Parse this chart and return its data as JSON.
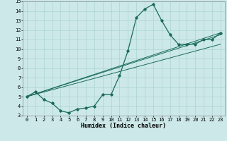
{
  "xlabel": "Humidex (Indice chaleur)",
  "bg_color": "#cce8e8",
  "grid_color": "#aad4d0",
  "line_color": "#1a6b5a",
  "xlim": [
    -0.5,
    23.5
  ],
  "ylim": [
    3,
    15
  ],
  "xtick_labels": [
    "0",
    "1",
    "2",
    "3",
    "4",
    "5",
    "6",
    "7",
    "8",
    "9",
    "10",
    "11",
    "12",
    "13",
    "14",
    "15",
    "16",
    "17",
    "18",
    "19",
    "20",
    "21",
    "22",
    "23"
  ],
  "xtick_vals": [
    0,
    1,
    2,
    3,
    4,
    5,
    6,
    7,
    8,
    9,
    10,
    11,
    12,
    13,
    14,
    15,
    16,
    17,
    18,
    19,
    20,
    21,
    22,
    23
  ],
  "ytick_vals": [
    3,
    4,
    5,
    6,
    7,
    8,
    9,
    10,
    11,
    12,
    13,
    14,
    15
  ],
  "series_main": {
    "x": [
      0,
      1,
      2,
      3,
      4,
      5,
      6,
      7,
      8,
      9,
      10,
      11,
      12,
      13,
      14,
      15,
      16,
      17,
      18,
      19,
      20,
      21,
      22,
      23
    ],
    "y": [
      5.0,
      5.5,
      4.7,
      4.3,
      3.5,
      3.3,
      3.7,
      3.8,
      4.0,
      5.2,
      5.2,
      7.2,
      9.8,
      13.3,
      14.2,
      14.7,
      13.0,
      11.5,
      10.5,
      10.5,
      10.5,
      11.0,
      11.0,
      11.7
    ]
  },
  "series_linear": [
    {
      "x": [
        0,
        23
      ],
      "y": [
        5.0,
        11.7
      ]
    },
    {
      "x": [
        0,
        23
      ],
      "y": [
        5.0,
        11.5
      ]
    },
    {
      "x": [
        0,
        23
      ],
      "y": [
        5.0,
        10.5
      ]
    }
  ]
}
